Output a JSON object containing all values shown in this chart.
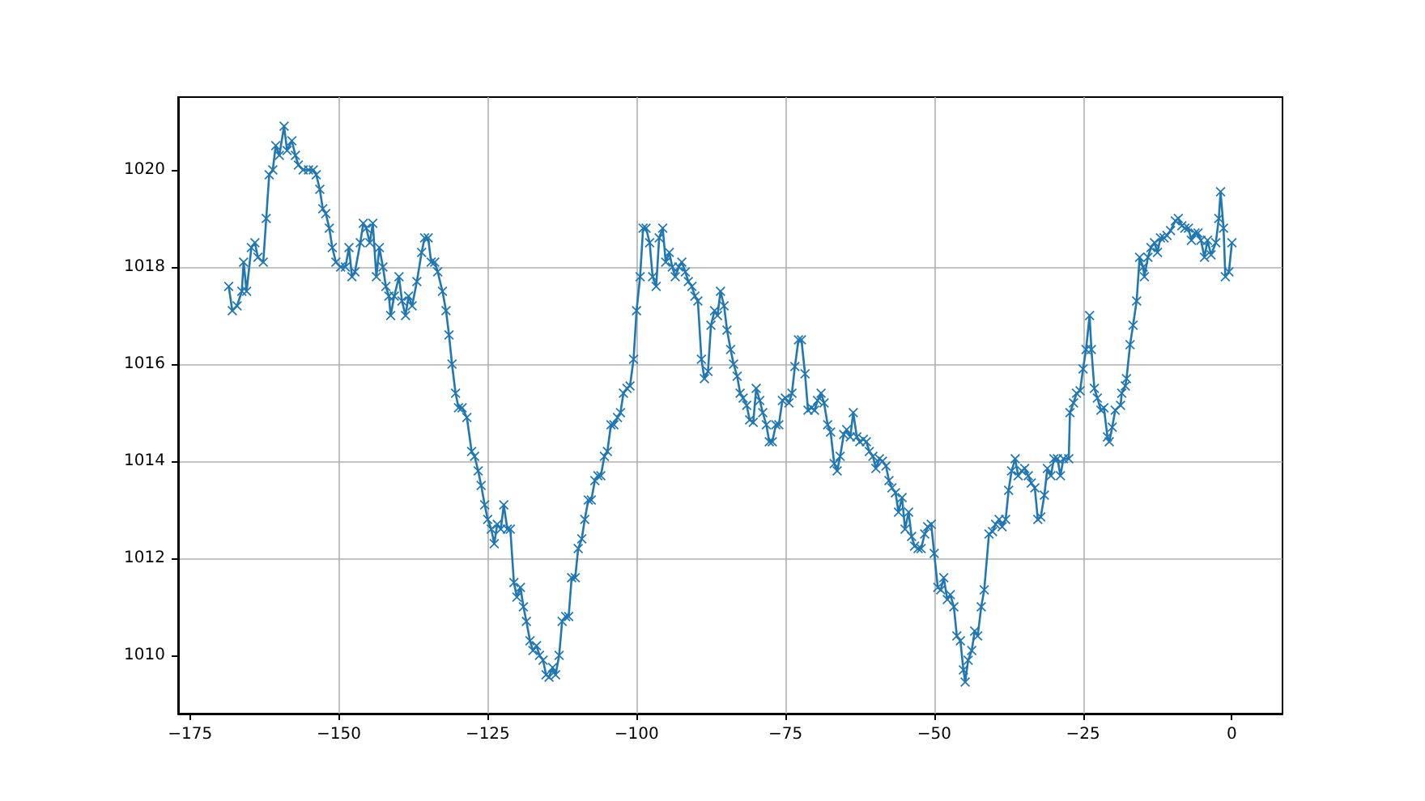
{
  "chart_data": {
    "type": "line",
    "color": "#1f77b4",
    "marker": "cross",
    "grid": true,
    "xlim": [
      -177,
      8.5
    ],
    "xticks": [
      -175,
      -150,
      -125,
      -100,
      -75,
      -50,
      -25,
      0
    ],
    "ylim": [
      1008.8,
      1021.5
    ],
    "yticks": [
      1010,
      1012,
      1014,
      1016,
      1018,
      1020
    ],
    "x": [
      -168.5,
      -167.9,
      -167.1,
      -166.3,
      -166.0,
      -165.5,
      -164.7,
      -164.1,
      -163.6,
      -162.7,
      -162.2,
      -161.7,
      -161.1,
      -160.6,
      -160.0,
      -159.2,
      -158.7,
      -157.9,
      -157.3,
      -156.8,
      -156.0,
      -155.1,
      -154.3,
      -153.8,
      -153.2,
      -152.7,
      -152.2,
      -151.6,
      -151.1,
      -150.5,
      -149.7,
      -148.9,
      -148.3,
      -147.8,
      -147.3,
      -146.4,
      -145.9,
      -145.4,
      -144.8,
      -144.3,
      -143.7,
      -143.2,
      -142.6,
      -142.1,
      -141.6,
      -141.3,
      -140.7,
      -139.9,
      -139.4,
      -138.8,
      -138.3,
      -137.7,
      -136.9,
      -136.1,
      -135.6,
      -135.0,
      -134.5,
      -133.9,
      -133.4,
      -132.6,
      -132.0,
      -131.5,
      -131.0,
      -130.4,
      -129.9,
      -129.3,
      -128.5,
      -127.7,
      -127.2,
      -126.6,
      -126.1,
      -125.5,
      -125.0,
      -124.4,
      -123.9,
      -123.4,
      -122.8,
      -122.3,
      -121.7,
      -121.2,
      -120.6,
      -120.1,
      -119.5,
      -119.0,
      -118.5,
      -117.9,
      -117.4,
      -116.8,
      -116.3,
      -115.7,
      -115.2,
      -114.7,
      -114.1,
      -113.6,
      -113.0,
      -112.5,
      -111.9,
      -111.4,
      -110.9,
      -110.3,
      -109.8,
      -109.2,
      -108.7,
      -108.1,
      -107.6,
      -107.0,
      -106.5,
      -106.0,
      -105.4,
      -104.9,
      -104.3,
      -103.8,
      -103.2,
      -102.7,
      -102.2,
      -101.6,
      -101.1,
      -100.5,
      -100.0,
      -99.4,
      -98.9,
      -98.4,
      -97.8,
      -97.3,
      -96.7,
      -96.2,
      -95.6,
      -95.1,
      -94.5,
      -94.0,
      -93.5,
      -92.9,
      -92.4,
      -91.8,
      -91.3,
      -90.7,
      -90.2,
      -89.7,
      -89.1,
      -88.6,
      -88.0,
      -87.5,
      -86.9,
      -86.4,
      -85.9,
      -85.3,
      -84.8,
      -84.2,
      -83.7,
      -83.1,
      -82.6,
      -82.1,
      -81.5,
      -81.0,
      -80.4,
      -79.9,
      -79.3,
      -78.8,
      -78.2,
      -77.7,
      -77.2,
      -76.6,
      -76.1,
      -75.5,
      -75.0,
      -74.4,
      -73.9,
      -73.4,
      -72.8,
      -72.3,
      -71.7,
      -71.2,
      -70.6,
      -70.1,
      -69.6,
      -69.0,
      -68.5,
      -67.9,
      -67.4,
      -66.8,
      -66.3,
      -65.8,
      -65.2,
      -64.7,
      -64.1,
      -63.6,
      -63.0,
      -62.5,
      -61.9,
      -61.4,
      -60.9,
      -60.3,
      -59.8,
      -59.2,
      -58.7,
      -58.1,
      -57.6,
      -57.1,
      -56.5,
      -56.0,
      -55.4,
      -54.9,
      -54.3,
      -53.8,
      -53.3,
      -52.7,
      -52.2,
      -51.6,
      -51.1,
      -50.5,
      -50.0,
      -49.4,
      -48.9,
      -48.4,
      -47.8,
      -47.3,
      -46.7,
      -46.2,
      -45.6,
      -45.1,
      -44.8,
      -44.3,
      -43.7,
      -43.2,
      -42.7,
      -42.1,
      -41.6,
      -40.8,
      -40.2,
      -39.7,
      -39.1,
      -38.6,
      -38.0,
      -37.5,
      -37.0,
      -36.4,
      -35.9,
      -35.3,
      -34.8,
      -34.2,
      -33.7,
      -33.1,
      -32.6,
      -32.1,
      -31.5,
      -31.0,
      -30.4,
      -29.9,
      -29.3,
      -28.8,
      -28.3,
      -27.4,
      -27.2,
      -26.6,
      -26.1,
      -25.5,
      -25.0,
      -24.5,
      -23.9,
      -23.6,
      -23.1,
      -22.6,
      -22.0,
      -21.5,
      -20.9,
      -20.6,
      -20.1,
      -19.6,
      -18.7,
      -18.5,
      -17.9,
      -17.7,
      -17.1,
      -16.6,
      -16.0,
      -15.5,
      -14.9,
      -14.7,
      -14.1,
      -13.6,
      -13.0,
      -12.5,
      -12.0,
      -11.4,
      -10.9,
      -10.3,
      -9.5,
      -9.0,
      -8.4,
      -7.9,
      -7.3,
      -6.8,
      -6.2,
      -5.7,
      -5.2,
      -4.6,
      -4.1,
      -3.5,
      -2.7,
      -2.2,
      -1.9,
      -1.4,
      -1.1,
      -0.5,
      0
    ],
    "values": [
      1017.6,
      1017.1,
      1017.2,
      1017.5,
      1018.1,
      1017.5,
      1018.4,
      1018.5,
      1018.2,
      1018.1,
      1019.0,
      1019.9,
      1020.0,
      1020.5,
      1020.3,
      1020.9,
      1020.4,
      1020.6,
      1020.3,
      1020.1,
      1020.0,
      1020.0,
      1020.0,
      1019.9,
      1019.6,
      1019.2,
      1019.1,
      1018.8,
      1018.4,
      1018.1,
      1018.0,
      1018.0,
      1018.4,
      1017.8,
      1017.9,
      1018.5,
      1018.9,
      1018.8,
      1018.5,
      1018.9,
      1017.8,
      1018.4,
      1018.0,
      1017.6,
      1017.4,
      1017.0,
      1017.4,
      1017.8,
      1017.3,
      1017.0,
      1017.4,
      1017.2,
      1017.7,
      1018.3,
      1018.6,
      1018.6,
      1018.1,
      1018.1,
      1017.9,
      1017.5,
      1017.1,
      1016.6,
      1016.0,
      1015.4,
      1015.1,
      1015.1,
      1014.9,
      1014.2,
      1014.1,
      1013.8,
      1013.5,
      1013.1,
      1012.8,
      1012.6,
      1012.3,
      1012.7,
      1012.6,
      1013.1,
      1012.6,
      1012.6,
      1011.5,
      1011.2,
      1011.4,
      1011.0,
      1010.7,
      1010.3,
      1010.1,
      1010.2,
      1010.0,
      1009.9,
      1009.6,
      1009.55,
      1009.75,
      1009.6,
      1010.0,
      1010.7,
      1010.8,
      1010.8,
      1011.6,
      1011.6,
      1012.2,
      1012.4,
      1012.8,
      1013.2,
      1013.2,
      1013.6,
      1013.7,
      1013.7,
      1014.1,
      1014.2,
      1014.75,
      1014.75,
      1014.9,
      1015.0,
      1015.4,
      1015.5,
      1015.55,
      1016.1,
      1017.1,
      1017.8,
      1018.8,
      1018.8,
      1018.5,
      1017.8,
      1017.6,
      1018.6,
      1018.8,
      1018.1,
      1018.3,
      1018.0,
      1017.8,
      1018.0,
      1018.1,
      1017.9,
      1017.7,
      1017.6,
      1017.4,
      1017.3,
      1016.1,
      1015.7,
      1015.85,
      1016.8,
      1017.1,
      1017.0,
      1017.5,
      1017.2,
      1016.7,
      1016.3,
      1016.0,
      1015.75,
      1015.4,
      1015.3,
      1015.15,
      1014.85,
      1014.8,
      1015.5,
      1015.25,
      1015.0,
      1014.75,
      1014.4,
      1014.4,
      1014.75,
      1014.75,
      1015.25,
      1015.3,
      1015.2,
      1015.4,
      1015.95,
      1016.5,
      1016.5,
      1015.8,
      1015.05,
      1015.1,
      1015.05,
      1015.25,
      1015.4,
      1015.2,
      1014.75,
      1014.6,
      1013.95,
      1013.8,
      1014.1,
      1014.55,
      1014.65,
      1014.5,
      1015.0,
      1014.5,
      1014.4,
      1014.45,
      1014.4,
      1014.2,
      1014.1,
      1013.85,
      1014.05,
      1014.0,
      1013.9,
      1013.6,
      1013.45,
      1013.35,
      1012.95,
      1013.25,
      1012.6,
      1012.95,
      1012.45,
      1012.25,
      1012.2,
      1012.2,
      1012.5,
      1012.65,
      1012.7,
      1012.1,
      1011.4,
      1011.35,
      1011.6,
      1011.15,
      1011.25,
      1011.0,
      1010.4,
      1010.3,
      1009.7,
      1009.45,
      1009.9,
      1010.1,
      1010.5,
      1010.4,
      1011.0,
      1011.35,
      1012.5,
      1012.55,
      1012.7,
      1012.8,
      1012.65,
      1012.8,
      1013.4,
      1013.8,
      1014.05,
      1013.7,
      1013.8,
      1013.85,
      1013.7,
      1013.55,
      1013.45,
      1012.8,
      1012.85,
      1013.3,
      1013.85,
      1013.7,
      1014.05,
      1014.05,
      1013.7,
      1014.05,
      1014.05,
      1015.0,
      1015.2,
      1015.4,
      1015.45,
      1015.9,
      1016.3,
      1017.0,
      1016.3,
      1015.5,
      1015.3,
      1015.05,
      1015.1,
      1014.5,
      1014.4,
      1014.7,
      1015.05,
      1015.15,
      1015.4,
      1015.55,
      1015.7,
      1016.4,
      1016.8,
      1017.3,
      1018.2,
      1018.0,
      1017.8,
      1018.2,
      1018.4,
      1018.5,
      1018.3,
      1018.6,
      1018.6,
      1018.65,
      1018.75,
      1018.95,
      1019.0,
      1018.85,
      1018.8,
      1018.8,
      1018.55,
      1018.7,
      1018.7,
      1018.55,
      1018.2,
      1018.55,
      1018.25,
      1018.5,
      1019.0,
      1019.55,
      1018.8,
      1017.8,
      1017.9,
      1018.5
    ]
  }
}
